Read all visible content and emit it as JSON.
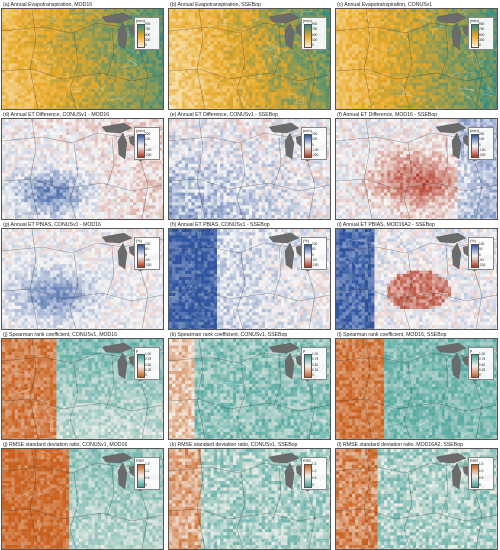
{
  "colors": {
    "et_low": "#fbf2d6",
    "et_mid": "#e9a826",
    "et_high": "#2e8b82",
    "div_neg": "#b2341f",
    "div_mid": "#f7f7f7",
    "div_pos": "#2f55a0",
    "rho_low": "#c9601e",
    "rho_mid": "#f4f0ea",
    "rho_high": "#3e9f96",
    "rsr_low": "#3e9f96",
    "rsr_high": "#c9601e",
    "lakes": "#6b6b6b"
  },
  "panels": [
    {
      "title": "(a) Annual Evapotranspiration, MOD16",
      "scheme": "et",
      "unit": "(mm)",
      "ticks": [
        "900",
        "750",
        "600",
        "300",
        "0"
      ],
      "pattern": 0
    },
    {
      "title": "(b) Annual Evapotranspiration, SSEBop",
      "scheme": "et",
      "unit": "(mm)",
      "ticks": [
        "900",
        "750",
        "600",
        "300",
        "0"
      ],
      "pattern": 1
    },
    {
      "title": "(c) Annual Evapotranspiration, CONUSv1",
      "scheme": "et",
      "unit": "(mm)",
      "ticks": [
        "900",
        "750",
        "600",
        "300",
        "0"
      ],
      "pattern": 2
    },
    {
      "title": "(d) Annual ET Difference, CONUSv1 - MOD16",
      "scheme": "div",
      "unit": "(mm)",
      "ticks": [
        "200",
        "100",
        "0",
        "-100",
        "-200"
      ],
      "pattern": 3
    },
    {
      "title": "(e) Annual ET Difference, CONUSv1 - SSEBop",
      "scheme": "div",
      "unit": "(mm)",
      "ticks": [
        "200",
        "100",
        "0",
        "-100",
        "-200"
      ],
      "pattern": 4
    },
    {
      "title": "(f) Annual ET Difference, MOD16 - SSEBop",
      "scheme": "div",
      "unit": "(mm)",
      "ticks": [
        "200",
        "100",
        "0",
        "-100",
        "-200"
      ],
      "pattern": 5
    },
    {
      "title": "(g) Annual ET PBIAS, CONUSv1 - MOD16",
      "scheme": "div",
      "unit": "(%)",
      "ticks": [
        "100",
        "50",
        "0",
        "-50",
        "-100"
      ],
      "pattern": 6
    },
    {
      "title": "(h) Annual ET PBIAS, CONUSv1 - SSEBop",
      "scheme": "div",
      "unit": "(%)",
      "ticks": [
        "100",
        "50",
        "0",
        "-50",
        "-100"
      ],
      "pattern": 7
    },
    {
      "title": "(i) Annual ET PBIAS, MOD16A2 - SSEBop",
      "scheme": "div",
      "unit": "(%)",
      "ticks": [
        "100",
        "50",
        "0",
        "-50",
        "-100"
      ],
      "pattern": 8
    },
    {
      "title": "(j) Spearman rank coefficient, CONUSv1, MOD16",
      "scheme": "rho",
      "unit": "ρ",
      "ticks": [
        "1.00",
        "0.75",
        "0.50",
        "0.25",
        "0"
      ],
      "pattern": 9
    },
    {
      "title": "(k) Spearman rank coefficient, CONUSv1, SSEBop",
      "scheme": "rho",
      "unit": "ρ",
      "ticks": [
        "1.00",
        "0.75",
        "0.50",
        "0.25",
        "0"
      ],
      "pattern": 10
    },
    {
      "title": "(l) Spearman rank coefficient, MOD16, SSEBop",
      "scheme": "rho",
      "unit": "ρ",
      "ticks": [
        "1.00",
        "0.75",
        "0.50",
        "0.25",
        "0"
      ],
      "pattern": 11
    },
    {
      "title": "(j) RMSE standard deviation ratio, CONUSv1, MOD16",
      "scheme": "rsr",
      "unit": "RSR",
      "ticks": [
        "1.5",
        "1.0",
        "0.5",
        "0"
      ],
      "pattern": 12
    },
    {
      "title": "(k) RMSE standard deviation ratio, CONUSv1, SSEBop",
      "scheme": "rsr",
      "unit": "RSR",
      "ticks": [
        "1.5",
        "1.0",
        "0.5",
        "0"
      ],
      "pattern": 13
    },
    {
      "title": "(l) RMSE standard deviation ratio, MOD16A2, SSEBop",
      "scheme": "rsr",
      "unit": "RSR",
      "ticks": [
        "1.5",
        "1.0",
        "0.5",
        "0"
      ],
      "pattern": 14
    }
  ]
}
